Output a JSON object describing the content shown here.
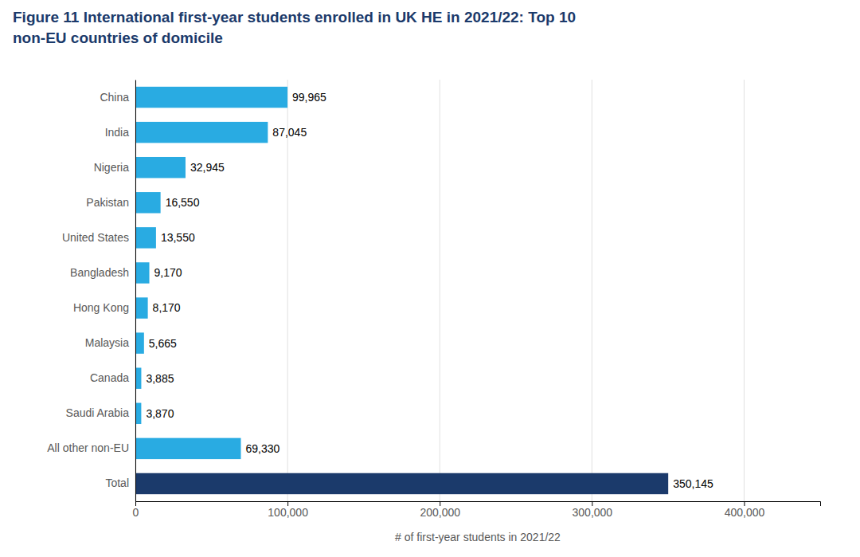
{
  "chart_data": {
    "type": "bar",
    "orientation": "horizontal",
    "title": "Figure 11  International first-year students enrolled in UK HE in 2021/22: Top 10",
    "subtitle": "non-EU countries of domicile",
    "categories": [
      "Total",
      "All other non-EU",
      "Saudi Arabia",
      "Canada",
      "Malaysia",
      "Hong Kong",
      "Bangladesh",
      "United States",
      "Pakistan",
      "Nigeria",
      "India",
      "China"
    ],
    "values": [
      350145,
      69330,
      3870,
      3885,
      5665,
      8170,
      9170,
      13550,
      16550,
      32945,
      87045,
      99965
    ],
    "value_labels": [
      "350,145",
      "69,330",
      "3,870",
      "3,885",
      "5,665",
      "8,170",
      "9,170",
      "13,550",
      "16,550",
      "32,945",
      "87,045",
      "99,965"
    ],
    "data_labels": true,
    "colors": [
      "#1b3a6b",
      "#29abe2",
      "#29abe2",
      "#29abe2",
      "#29abe2",
      "#29abe2",
      "#29abe2",
      "#29abe2",
      "#29abe2",
      "#29abe2",
      "#29abe2",
      "#29abe2"
    ],
    "xlabel": "# of first-year students in 2021/22",
    "xlim": [
      0,
      450000
    ],
    "xticks": [
      0,
      {
        "value": 100000,
        "label": "100,000"
      },
      {
        "value": 200000,
        "label": "200,000"
      },
      {
        "value": 300000,
        "label": "300,000"
      },
      {
        "value": 400000,
        "label": "400,000"
      }
    ],
    "grid": true
  }
}
